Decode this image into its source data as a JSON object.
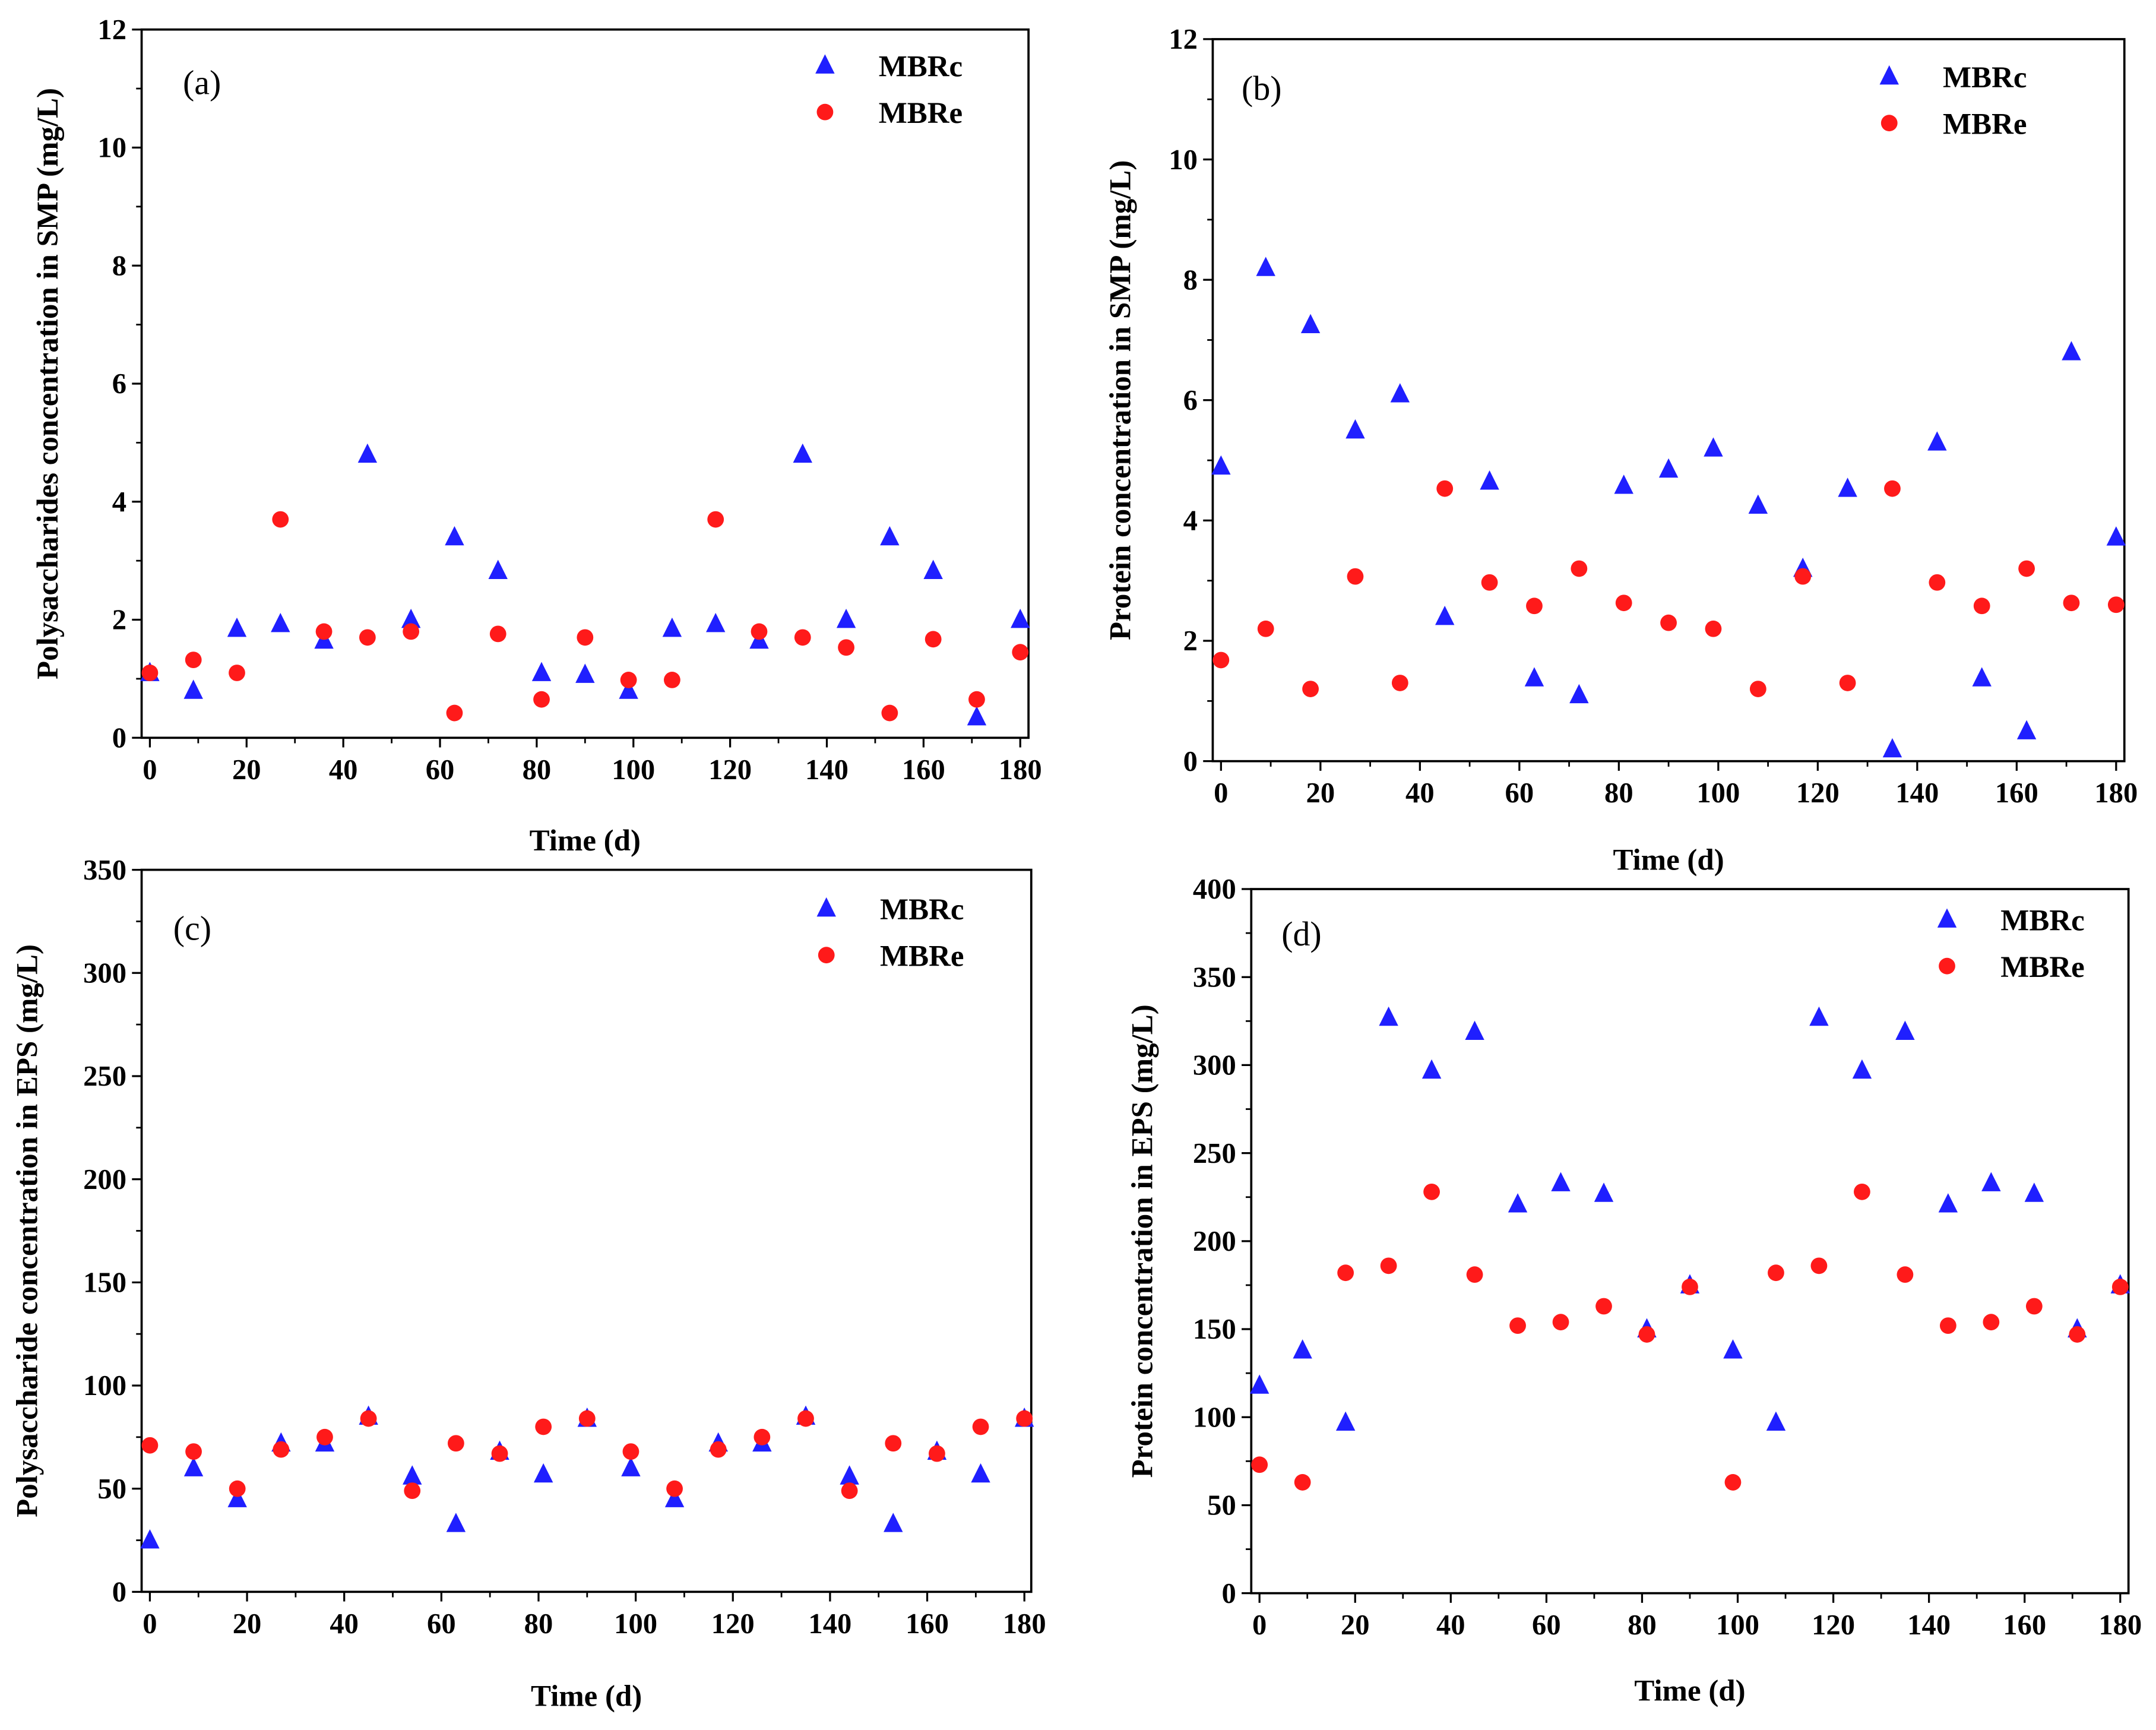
{
  "chart_data": [
    {
      "type": "scatter",
      "panel_label": "(a)",
      "xlabel": "Time (d)",
      "ylabel": "Polysaccharides concentration in SMP (mg/L)",
      "xlim": [
        0,
        180
      ],
      "ylim": [
        0,
        12
      ],
      "xticks": [
        0,
        20,
        40,
        60,
        80,
        100,
        120,
        140,
        160,
        180
      ],
      "yticks": [
        0,
        2,
        4,
        6,
        8,
        10,
        12
      ],
      "legend_position": "top-right",
      "x": [
        0,
        9,
        18,
        27,
        36,
        45,
        54,
        63,
        72,
        81,
        90,
        99,
        108,
        117,
        126,
        135,
        144,
        153,
        162,
        171,
        180
      ],
      "series": [
        {
          "name": "MBRc",
          "marker": "triangle",
          "color": "#1f1fff",
          "values": [
            1.1,
            0.8,
            1.85,
            1.93,
            1.65,
            4.8,
            2.0,
            3.4,
            2.83,
            1.1,
            1.07,
            0.8,
            1.85,
            1.93,
            1.65,
            4.8,
            2.0,
            3.4,
            2.83,
            0.35,
            2.0
          ]
        },
        {
          "name": "MBRe",
          "marker": "circle",
          "color": "#ff1a1a",
          "values": [
            1.1,
            1.32,
            1.1,
            3.7,
            1.8,
            1.7,
            1.8,
            0.42,
            1.76,
            0.65,
            1.7,
            0.98,
            0.98,
            3.7,
            1.8,
            1.7,
            1.53,
            0.42,
            1.67,
            0.65,
            1.45
          ]
        }
      ]
    },
    {
      "type": "scatter",
      "panel_label": "(b)",
      "xlabel": "Time (d)",
      "ylabel": "Protein concentration in SMP (mg/L)",
      "xlim": [
        0,
        180
      ],
      "ylim": [
        0,
        12
      ],
      "xticks": [
        0,
        20,
        40,
        60,
        80,
        100,
        120,
        140,
        160,
        180
      ],
      "yticks": [
        0,
        2,
        4,
        6,
        8,
        10,
        12
      ],
      "legend_position": "top-right",
      "x": [
        0,
        9,
        18,
        27,
        36,
        45,
        54,
        63,
        72,
        81,
        90,
        99,
        108,
        117,
        126,
        135,
        144,
        153,
        162,
        171,
        180
      ],
      "series": [
        {
          "name": "MBRc",
          "marker": "triangle",
          "color": "#1f1fff",
          "values": [
            4.9,
            8.2,
            7.25,
            5.5,
            6.1,
            2.4,
            4.65,
            1.38,
            1.1,
            4.58,
            4.85,
            5.2,
            4.25,
            3.2,
            4.53,
            0.2,
            5.3,
            1.38,
            0.5,
            6.8,
            3.72
          ]
        },
        {
          "name": "MBRe",
          "marker": "circle",
          "color": "#ff1a1a",
          "values": [
            1.68,
            2.2,
            1.2,
            3.07,
            1.3,
            4.53,
            2.97,
            2.58,
            3.2,
            2.63,
            2.3,
            2.2,
            1.2,
            3.07,
            1.3,
            4.53,
            2.97,
            2.58,
            3.2,
            2.63,
            2.6
          ]
        }
      ]
    },
    {
      "type": "scatter",
      "panel_label": "(c)",
      "xlabel": "Time (d)",
      "ylabel": "Polysaccharide concentration in EPS (mg/L)",
      "xlim": [
        0,
        180
      ],
      "ylim": [
        0,
        350
      ],
      "xticks": [
        0,
        20,
        40,
        60,
        80,
        100,
        120,
        140,
        160,
        180
      ],
      "yticks": [
        0,
        50,
        100,
        150,
        200,
        250,
        300,
        350
      ],
      "legend_position": "top-right",
      "x": [
        0,
        9,
        18,
        27,
        36,
        45,
        54,
        63,
        72,
        81,
        90,
        99,
        108,
        117,
        126,
        135,
        144,
        153,
        162,
        171,
        180
      ],
      "series": [
        {
          "name": "MBRc",
          "marker": "triangle",
          "color": "#1f1fff",
          "values": [
            25,
            60,
            45,
            72,
            72,
            85,
            56,
            33,
            68,
            57,
            84,
            60,
            45,
            72,
            72,
            85,
            56,
            33,
            68,
            57,
            84
          ]
        },
        {
          "name": "MBRe",
          "marker": "circle",
          "color": "#ff1a1a",
          "values": [
            71,
            68,
            50,
            69,
            75,
            84,
            49,
            72,
            67,
            80,
            84,
            68,
            50,
            69,
            75,
            84,
            49,
            72,
            67,
            80,
            84
          ]
        }
      ]
    },
    {
      "type": "scatter",
      "panel_label": "(d)",
      "xlabel": "Time (d)",
      "ylabel": "Protein concentration in EPS (mg/L)",
      "xlim": [
        0,
        180
      ],
      "ylim": [
        0,
        400
      ],
      "xticks": [
        0,
        20,
        40,
        60,
        80,
        100,
        120,
        140,
        160,
        180
      ],
      "yticks": [
        0,
        50,
        100,
        150,
        200,
        250,
        300,
        350,
        400
      ],
      "legend_position": "top-right",
      "x": [
        0,
        9,
        18,
        27,
        36,
        45,
        54,
        63,
        72,
        81,
        90,
        99,
        108,
        117,
        126,
        135,
        144,
        153,
        162,
        171,
        180
      ],
      "series": [
        {
          "name": "MBRc",
          "marker": "triangle",
          "color": "#1f1fff",
          "values": [
            118,
            138,
            97,
            327,
            297,
            319,
            221,
            233,
            227,
            150,
            175,
            138,
            97,
            327,
            297,
            319,
            221,
            233,
            227,
            150,
            175
          ]
        },
        {
          "name": "MBRe",
          "marker": "circle",
          "color": "#ff1a1a",
          "values": [
            73,
            63,
            182,
            186,
            228,
            181,
            152,
            154,
            163,
            147,
            174,
            63,
            182,
            186,
            228,
            181,
            152,
            154,
            163,
            147,
            174
          ]
        }
      ]
    }
  ]
}
